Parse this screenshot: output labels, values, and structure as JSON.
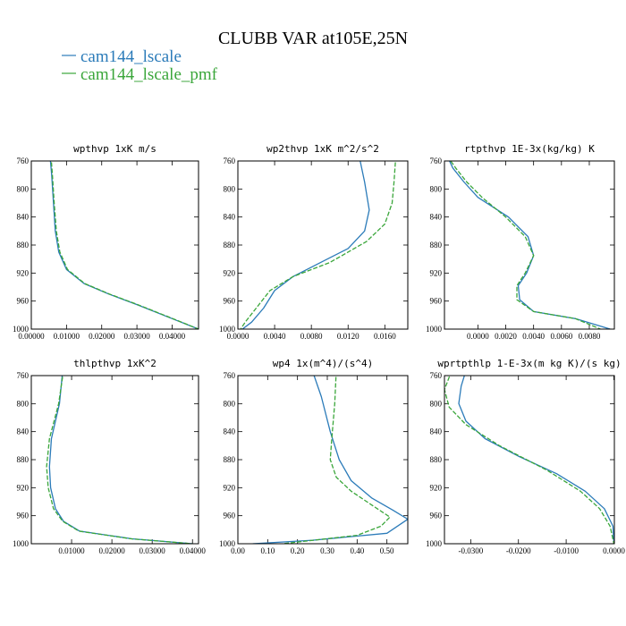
{
  "chart_data": {
    "type": "line",
    "title": "CLUBB VAR at105E,25N",
    "legend": [
      {
        "name": "cam144_lscale",
        "color": "#2b7bb9",
        "dash": "solid"
      },
      {
        "name": "cam144_lscale_pmf",
        "color": "#3aa63a",
        "dash": "dashed"
      }
    ],
    "y_axis": {
      "label": "",
      "range": [
        760,
        1000
      ],
      "inverted": true,
      "ticks": [
        760,
        800,
        840,
        880,
        920,
        960,
        1000
      ]
    },
    "panels": [
      {
        "title": "wpthvp  1xK m/s",
        "xlim": [
          0,
          0.0475
        ],
        "xticks": [
          {
            "v": 0,
            "t": "0.00000"
          },
          {
            "v": 0.01,
            "t": "0.01000"
          },
          {
            "v": 0.02,
            "t": "0.02000"
          },
          {
            "v": 0.03,
            "t": "0.03000"
          },
          {
            "v": 0.04,
            "t": "0.04000"
          }
        ],
        "series": [
          {
            "name": "cam144_lscale",
            "points": [
              [
                0.0053,
                753
              ],
              [
                0.0058,
                780
              ],
              [
                0.0063,
                820
              ],
              [
                0.0068,
                860
              ],
              [
                0.0078,
                890
              ],
              [
                0.01,
                915
              ],
              [
                0.015,
                935
              ],
              [
                0.022,
                950
              ],
              [
                0.03,
                965
              ],
              [
                0.04,
                985
              ],
              [
                0.0475,
                1000
              ]
            ]
          },
          {
            "name": "cam144_lscale_pmf",
            "points": [
              [
                0.0056,
                753
              ],
              [
                0.006,
                780
              ],
              [
                0.0065,
                820
              ],
              [
                0.0071,
                860
              ],
              [
                0.0081,
                890
              ],
              [
                0.0103,
                915
              ],
              [
                0.0152,
                935
              ],
              [
                0.0222,
                950
              ],
              [
                0.0302,
                965
              ],
              [
                0.0402,
                985
              ],
              [
                0.0475,
                1000
              ]
            ]
          }
        ]
      },
      {
        "title": "wp2thvp  1xK m^2/s^2",
        "xlim": [
          0,
          0.0185
        ],
        "xticks": [
          {
            "v": 0,
            "t": "0.0000"
          },
          {
            "v": 0.004,
            "t": "0.0040"
          },
          {
            "v": 0.008,
            "t": "0.0080"
          },
          {
            "v": 0.012,
            "t": "0.0120"
          },
          {
            "v": 0.016,
            "t": "0.0160"
          }
        ],
        "series": [
          {
            "name": "cam144_lscale",
            "points": [
              [
                0.0132,
                753
              ],
              [
                0.0138,
                790
              ],
              [
                0.0143,
                830
              ],
              [
                0.0138,
                860
              ],
              [
                0.012,
                885
              ],
              [
                0.009,
                905
              ],
              [
                0.006,
                925
              ],
              [
                0.004,
                945
              ],
              [
                0.0028,
                970
              ],
              [
                0.0015,
                990
              ],
              [
                0.0005,
                1000
              ]
            ]
          },
          {
            "name": "cam144_lscale_pmf",
            "points": [
              [
                0.0172,
                753
              ],
              [
                0.017,
                790
              ],
              [
                0.0168,
                820
              ],
              [
                0.016,
                850
              ],
              [
                0.014,
                875
              ],
              [
                0.01,
                905
              ],
              [
                0.006,
                925
              ],
              [
                0.0035,
                945
              ],
              [
                0.002,
                970
              ],
              [
                0.0008,
                990
              ],
              [
                0.0003,
                1000
              ]
            ]
          }
        ]
      },
      {
        "title": "rtpthvp  1E-3x(kg/kg) K",
        "xlim": [
          -0.0024,
          0.0098
        ],
        "xticks": [
          {
            "v": 0,
            "t": "0.0000"
          },
          {
            "v": 0.002,
            "t": "0.0020"
          },
          {
            "v": 0.004,
            "t": "0.0040"
          },
          {
            "v": 0.006,
            "t": "0.0060"
          },
          {
            "v": 0.008,
            "t": "0.0080"
          }
        ],
        "series": [
          {
            "name": "cam144_lscale",
            "points": [
              [
                -0.0022,
                753
              ],
              [
                -0.0018,
                770
              ],
              [
                -0.001,
                790
              ],
              [
                0.0,
                812
              ],
              [
                0.0022,
                840
              ],
              [
                0.0036,
                868
              ],
              [
                0.004,
                895
              ],
              [
                0.0035,
                920
              ],
              [
                0.0029,
                938
              ],
              [
                0.003,
                958
              ],
              [
                0.004,
                975
              ],
              [
                0.007,
                985
              ],
              [
                0.0095,
                1000
              ]
            ]
          },
          {
            "name": "cam144_lscale_pmf",
            "points": [
              [
                -0.0022,
                753
              ],
              [
                -0.0016,
                770
              ],
              [
                -0.0008,
                790
              ],
              [
                0.0003,
                812
              ],
              [
                0.002,
                840
              ],
              [
                0.0034,
                868
              ],
              [
                0.004,
                895
              ],
              [
                0.0034,
                920
              ],
              [
                0.0028,
                938
              ],
              [
                0.0028,
                958
              ],
              [
                0.004,
                975
              ],
              [
                0.007,
                985
              ],
              [
                0.0088,
                1000
              ]
            ]
          }
        ]
      },
      {
        "title": "thlpthvp  1xK^2",
        "xlim": [
          0,
          0.0415
        ],
        "xticks": [
          {
            "v": 0.01,
            "t": "0.01000"
          },
          {
            "v": 0.02,
            "t": "0.02000"
          },
          {
            "v": 0.03,
            "t": "0.03000"
          },
          {
            "v": 0.04,
            "t": "0.04000"
          }
        ],
        "series": [
          {
            "name": "cam144_lscale",
            "points": [
              [
                0.0078,
                753
              ],
              [
                0.007,
                800
              ],
              [
                0.005,
                850
              ],
              [
                0.0045,
                890
              ],
              [
                0.0048,
                920
              ],
              [
                0.006,
                950
              ],
              [
                0.008,
                968
              ],
              [
                0.012,
                982
              ],
              [
                0.025,
                993
              ],
              [
                0.04,
                1000
              ]
            ]
          },
          {
            "name": "cam144_lscale_pmf",
            "points": [
              [
                0.008,
                753
              ],
              [
                0.0068,
                800
              ],
              [
                0.0045,
                850
              ],
              [
                0.0038,
                890
              ],
              [
                0.0042,
                920
              ],
              [
                0.0055,
                950
              ],
              [
                0.0078,
                968
              ],
              [
                0.0118,
                982
              ],
              [
                0.0248,
                993
              ],
              [
                0.04,
                1000
              ]
            ]
          }
        ]
      },
      {
        "title": "wp4  1x(m^4)/(s^4)",
        "xlim": [
          0,
          0.57
        ],
        "xticks": [
          {
            "v": 0,
            "t": "0.00"
          },
          {
            "v": 0.1,
            "t": "0.10"
          },
          {
            "v": 0.2,
            "t": "0.20"
          },
          {
            "v": 0.3,
            "t": "0.30"
          },
          {
            "v": 0.4,
            "t": "0.40"
          },
          {
            "v": 0.5,
            "t": "0.50"
          }
        ],
        "series": [
          {
            "name": "cam144_lscale",
            "points": [
              [
                0.25,
                753
              ],
              [
                0.28,
                790
              ],
              [
                0.31,
                840
              ],
              [
                0.34,
                880
              ],
              [
                0.38,
                910
              ],
              [
                0.45,
                935
              ],
              [
                0.52,
                952
              ],
              [
                0.57,
                965
              ],
              [
                0.5,
                985
              ],
              [
                0.25,
                995
              ],
              [
                0.05,
                1000
              ]
            ]
          },
          {
            "name": "cam144_lscale_pmf",
            "points": [
              [
                0.33,
                753
              ],
              [
                0.325,
                800
              ],
              [
                0.315,
                850
              ],
              [
                0.31,
                880
              ],
              [
                0.33,
                905
              ],
              [
                0.38,
                925
              ],
              [
                0.45,
                945
              ],
              [
                0.51,
                962
              ],
              [
                0.48,
                975
              ],
              [
                0.4,
                988
              ],
              [
                0.15,
                1000
              ]
            ]
          }
        ]
      },
      {
        "title": "wprtpthlp  1-E-3x(m kg K)/(s kg)",
        "xlim": [
          -0.0355,
          0.0001
        ],
        "xticks": [
          {
            "v": -0.03,
            "t": "-0.0300"
          },
          {
            "v": -0.02,
            "t": "-0.0200"
          },
          {
            "v": -0.01,
            "t": "-0.0100"
          },
          {
            "v": 0,
            "t": "0.0000"
          }
        ],
        "series": [
          {
            "name": "cam144_lscale",
            "points": [
              [
                -0.031,
                753
              ],
              [
                -0.032,
                775
              ],
              [
                -0.0325,
                800
              ],
              [
                -0.031,
                825
              ],
              [
                -0.027,
                850
              ],
              [
                -0.02,
                875
              ],
              [
                -0.012,
                900
              ],
              [
                -0.006,
                925
              ],
              [
                -0.002,
                950
              ],
              [
                -0.0002,
                975
              ],
              [
                0.0,
                1000
              ]
            ]
          },
          {
            "name": "cam144_lscale_pmf",
            "points": [
              [
                -0.034,
                753
              ],
              [
                -0.0355,
                780
              ],
              [
                -0.0345,
                805
              ],
              [
                -0.031,
                830
              ],
              [
                -0.024,
                860
              ],
              [
                -0.014,
                895
              ],
              [
                -0.007,
                925
              ],
              [
                -0.003,
                950
              ],
              [
                -0.0008,
                975
              ],
              [
                0.0,
                1000
              ]
            ]
          }
        ]
      }
    ]
  }
}
